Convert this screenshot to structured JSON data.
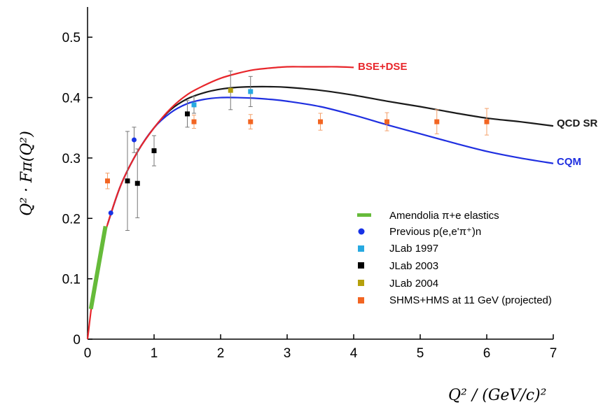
{
  "chart_data": {
    "type": "scatter",
    "xlabel": "Q² / (GeV/c)²",
    "ylabel": "Q² · Fπ(Q²)",
    "xlim": [
      0,
      7
    ],
    "ylim": [
      0,
      0.55
    ],
    "x_ticks": [
      "0",
      "1",
      "2",
      "3",
      "4",
      "5",
      "6",
      "7"
    ],
    "y_ticks": [
      "0",
      "0.1",
      "0.2",
      "0.3",
      "0.4",
      "0.5"
    ],
    "curves": [
      {
        "name": "BSE+DSE",
        "color": "#e8262b",
        "x": [
          0,
          0.1,
          0.2,
          0.3,
          0.5,
          0.75,
          1.0,
          1.25,
          1.5,
          1.75,
          2.0,
          2.25,
          2.5,
          2.75,
          3.0,
          3.25,
          3.5,
          3.75,
          4.0
        ],
        "y": [
          0,
          0.088,
          0.147,
          0.19,
          0.255,
          0.31,
          0.35,
          0.382,
          0.405,
          0.42,
          0.432,
          0.44,
          0.446,
          0.449,
          0.451,
          0.451,
          0.451,
          0.451,
          0.45
        ]
      },
      {
        "name": "QCD SR",
        "color": "#1a1a1a",
        "x": [
          0.3,
          0.5,
          0.75,
          1.0,
          1.25,
          1.5,
          1.75,
          2.0,
          2.25,
          2.5,
          2.75,
          3.0,
          3.5,
          4.0,
          4.5,
          5.0,
          5.5,
          6.0,
          6.5,
          7.0
        ],
        "y": [
          0.19,
          0.255,
          0.31,
          0.35,
          0.38,
          0.398,
          0.408,
          0.414,
          0.417,
          0.418,
          0.418,
          0.417,
          0.412,
          0.404,
          0.394,
          0.385,
          0.375,
          0.366,
          0.36,
          0.353
        ]
      },
      {
        "name": "CQM",
        "color": "#1f2fe0",
        "x": [
          0.3,
          0.5,
          0.75,
          1.0,
          1.25,
          1.5,
          1.75,
          2.0,
          2.25,
          2.5,
          2.75,
          3.0,
          3.5,
          4.0,
          4.5,
          5.0,
          5.5,
          6.0,
          6.5,
          7.0
        ],
        "y": [
          0.19,
          0.255,
          0.31,
          0.35,
          0.375,
          0.39,
          0.397,
          0.4,
          0.4,
          0.399,
          0.397,
          0.394,
          0.385,
          0.371,
          0.355,
          0.34,
          0.325,
          0.311,
          0.3,
          0.291
        ]
      }
    ],
    "series": [
      {
        "name": "Amendolia π+e elastics",
        "marker": "band",
        "color": "#66bb3a",
        "x": [
          0.05,
          0.27
        ],
        "y": [
          0.05,
          0.187
        ]
      },
      {
        "name": "Previous p(e,e'π⁺)n",
        "marker": "circle",
        "color": "#1732e6",
        "points": [
          {
            "x": 0.35,
            "y": 0.209,
            "err": 0.0
          },
          {
            "x": 0.7,
            "y": 0.33,
            "err": 0.021
          }
        ]
      },
      {
        "name": "JLab 1997",
        "marker": "square",
        "color": "#27a9e1",
        "points": [
          {
            "x": 1.6,
            "y": 0.388,
            "err": 0.014
          },
          {
            "x": 2.45,
            "y": 0.41,
            "err": 0.025
          }
        ]
      },
      {
        "name": "JLab 2003",
        "marker": "square",
        "color": "#000000",
        "points": [
          {
            "x": 0.6,
            "y": 0.262,
            "err": 0.082
          },
          {
            "x": 0.75,
            "y": 0.258,
            "err": 0.057
          },
          {
            "x": 1.0,
            "y": 0.312,
            "err": 0.025
          },
          {
            "x": 1.5,
            "y": 0.373,
            "err": 0.022
          }
        ]
      },
      {
        "name": "JLab 2004",
        "marker": "square",
        "color": "#b5a00c",
        "points": [
          {
            "x": 2.15,
            "y": 0.412,
            "err": 0.032
          }
        ]
      },
      {
        "name": "SHMS+HMS at 11 GeV (projected)",
        "marker": "square",
        "color": "#f26522",
        "points": [
          {
            "x": 0.3,
            "y": 0.262,
            "err": 0.013
          },
          {
            "x": 1.6,
            "y": 0.36,
            "err": 0.011
          },
          {
            "x": 2.45,
            "y": 0.36,
            "err": 0.012
          },
          {
            "x": 3.5,
            "y": 0.36,
            "err": 0.014
          },
          {
            "x": 4.5,
            "y": 0.36,
            "err": 0.015
          },
          {
            "x": 5.25,
            "y": 0.36,
            "err": 0.02
          },
          {
            "x": 6.0,
            "y": 0.36,
            "err": 0.022
          }
        ]
      }
    ],
    "legend": {
      "placement": "bottom-right",
      "entries": [
        "Amendolia π+e elastics",
        "Previous p(e,e'π⁺)n",
        "JLab 1997",
        "JLab 2003",
        "JLab 2004",
        "SHMS+HMS at 11 GeV (projected)"
      ]
    },
    "grid": false
  }
}
